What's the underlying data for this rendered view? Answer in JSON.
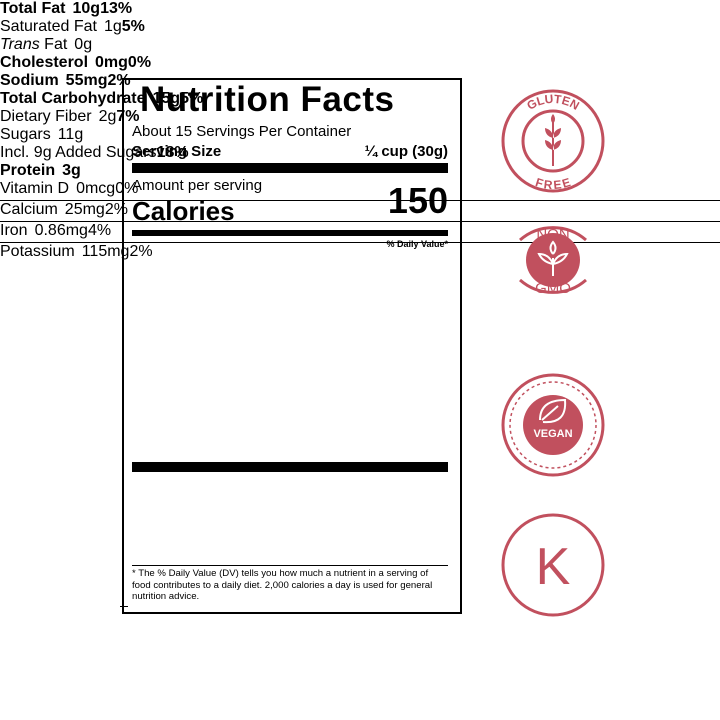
{
  "label": {
    "title": "Nutrition Facts",
    "servings": "About 15 Servings Per Container",
    "serving_size_label": "Serving Size",
    "serving_size": "¼ cup (30g)",
    "amount_per_serving": "Amount per serving",
    "calories_label": "Calories",
    "calories": "150",
    "dv_header": "% Daily Value*",
    "nutrients": [
      {
        "name": "Total Fat",
        "amount": "10g",
        "dv": "13%"
      },
      {
        "name": "Saturated Fat",
        "amount": "1g",
        "dv": "5%"
      },
      {
        "name_italic": "Trans",
        "name": "Fat",
        "amount": "0g"
      },
      {
        "name": "Cholesterol",
        "amount": "0mg",
        "dv": "0%"
      },
      {
        "name": "Sodium",
        "amount": "55mg",
        "dv": "2%"
      },
      {
        "name": "Total Carbohydrate",
        "amount": "15g",
        "dv": "5%"
      },
      {
        "name": "Dietary Fiber",
        "amount": "2g",
        "dv": "7%"
      },
      {
        "name": "Sugars",
        "amount": "11g"
      },
      {
        "name": "Incl. 9g Added Sugars",
        "dv": "18%"
      },
      {
        "name": "Protein",
        "amount": "3g"
      }
    ],
    "vitamins": [
      {
        "name": "Vitamin D",
        "amount": "0mcg",
        "dv": "0%"
      },
      {
        "name": "Calcium",
        "amount": "25mg",
        "dv": "2%"
      },
      {
        "name": "Iron",
        "amount": "0.86mg",
        "dv": "4%"
      },
      {
        "name": "Potassium",
        "amount": "115mg",
        "dv": "2%"
      }
    ],
    "footnote": "* The % Daily Value (DV) tells you how much a nutrient in a serving of food contributes to a daily diet. 2,000 calories a day is used for general nutrition advice."
  },
  "badges": {
    "gluten_free": {
      "top": "GLUTEN",
      "bottom": "FREE"
    },
    "non_gmo": {
      "top": "NON",
      "bottom": "GMO"
    },
    "vegan": {
      "text": "VEGAN"
    },
    "kosher": {
      "text": "K"
    }
  }
}
